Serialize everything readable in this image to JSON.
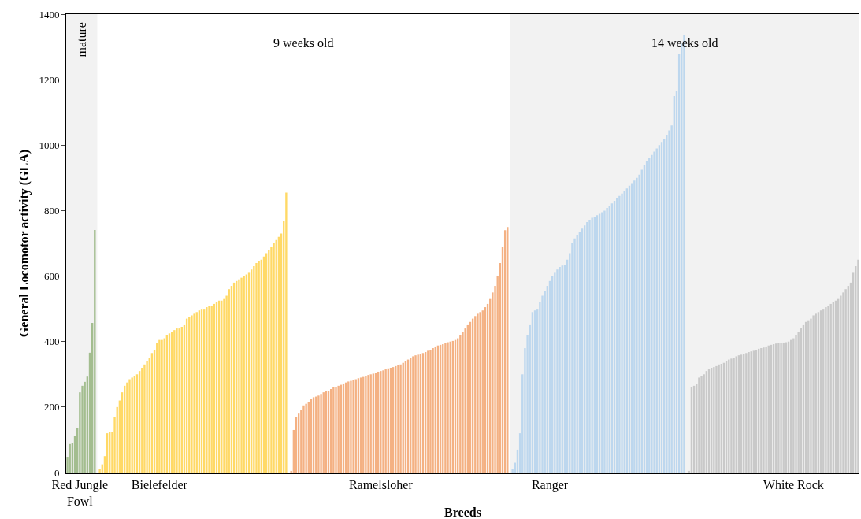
{
  "chart_data": {
    "type": "bar",
    "xlabel": "Breeds",
    "ylabel": "General Locomotor activity (GLA)",
    "categories": [
      null,
      null,
      null,
      null,
      null,
      "Red Jungle Fowl",
      null,
      null,
      null,
      null,
      null,
      null,
      null,
      null,
      null,
      null,
      null,
      null,
      null,
      null,
      null,
      null,
      null,
      null,
      null,
      null,
      null,
      null,
      null,
      null,
      null,
      null,
      null,
      null,
      null,
      null,
      null,
      "Bielefelder",
      null,
      null,
      null,
      null,
      null,
      null,
      null,
      null,
      null,
      null,
      null,
      null,
      null,
      null,
      null,
      null,
      null,
      null,
      null,
      null,
      null,
      null,
      null,
      null,
      null,
      null,
      null,
      null,
      null,
      null,
      null,
      null,
      null,
      null,
      null,
      null,
      null,
      null,
      null,
      null,
      null,
      null,
      null,
      null,
      null,
      null,
      null,
      null,
      null,
      null,
      null,
      null,
      null,
      null,
      null,
      null,
      null,
      null,
      null,
      null,
      null,
      null,
      null,
      null,
      null,
      null,
      null,
      null,
      null,
      null,
      null,
      null,
      null,
      null,
      null,
      null,
      null,
      null,
      null,
      null,
      null,
      null,
      null,
      null,
      null,
      null,
      null,
      null,
      "Ramelsloher",
      null,
      null,
      null,
      null,
      null,
      null,
      null,
      null,
      null,
      null,
      null,
      null,
      null,
      null,
      null,
      null,
      null,
      null,
      null,
      null,
      null,
      null,
      null,
      null,
      null,
      null,
      null,
      null,
      null,
      null,
      null,
      null,
      null,
      null,
      null,
      null,
      null,
      null,
      null,
      null,
      null,
      null,
      null,
      null,
      null,
      null,
      null,
      null,
      null,
      null,
      null,
      null,
      null,
      null,
      null,
      null,
      null,
      null,
      null,
      null,
      null,
      null,
      null,
      null,
      null,
      null,
      null,
      "Ranger",
      null,
      null,
      null,
      null,
      null,
      null,
      null,
      null,
      null,
      null,
      null,
      null,
      null,
      null,
      null,
      null,
      null,
      null,
      null,
      null,
      null,
      null,
      null,
      null,
      null,
      null,
      null,
      null,
      null,
      null,
      null,
      null,
      null,
      null,
      null,
      null,
      null,
      null,
      null,
      null,
      null,
      null,
      null,
      null,
      null,
      null,
      null,
      null,
      null,
      null,
      null,
      null,
      null,
      null,
      null,
      null,
      null,
      null,
      null,
      null,
      null,
      null,
      null,
      null,
      null,
      null,
      null,
      null,
      null,
      null,
      null,
      null,
      null,
      null,
      null,
      null,
      null,
      null,
      null,
      null,
      null,
      null,
      null,
      null,
      null,
      null,
      null,
      null,
      null,
      null,
      null,
      null,
      null,
      null,
      null,
      null,
      null,
      "White Rock",
      null,
      null,
      null,
      null,
      null,
      null,
      null,
      null,
      null,
      null,
      null,
      null,
      null,
      null,
      null,
      null,
      null,
      null,
      null,
      null,
      null,
      null,
      null,
      null,
      null,
      null
    ],
    "values": [
      48,
      87,
      91,
      113,
      137,
      245,
      265,
      277,
      293,
      366,
      457,
      741,
      null,
      10,
      25,
      50,
      120,
      125,
      125,
      170,
      200,
      220,
      245,
      265,
      275,
      285,
      290,
      295,
      300,
      310,
      320,
      330,
      340,
      350,
      365,
      375,
      395,
      405,
      405,
      410,
      420,
      425,
      430,
      435,
      440,
      440,
      445,
      450,
      470,
      475,
      480,
      485,
      490,
      495,
      500,
      500,
      505,
      510,
      510,
      515,
      520,
      525,
      525,
      530,
      540,
      560,
      570,
      580,
      585,
      590,
      595,
      600,
      605,
      610,
      620,
      630,
      640,
      645,
      650,
      660,
      670,
      680,
      690,
      700,
      710,
      720,
      730,
      770,
      855,
      null,
      5,
      130,
      170,
      180,
      190,
      205,
      210,
      215,
      225,
      230,
      232,
      235,
      240,
      245,
      248,
      250,
      255,
      260,
      262,
      265,
      268,
      272,
      275,
      278,
      280,
      282,
      285,
      288,
      290,
      292,
      295,
      298,
      300,
      302,
      305,
      308,
      310,
      312,
      315,
      318,
      320,
      322,
      325,
      328,
      330,
      335,
      340,
      345,
      350,
      355,
      358,
      360,
      362,
      365,
      368,
      372,
      375,
      380,
      385,
      388,
      390,
      392,
      395,
      398,
      400,
      402,
      405,
      410,
      420,
      430,
      440,
      450,
      460,
      470,
      478,
      485,
      490,
      495,
      505,
      515,
      530,
      550,
      570,
      600,
      640,
      690,
      740,
      750,
      null,
      10,
      30,
      70,
      120,
      300,
      380,
      420,
      450,
      490,
      495,
      500,
      520,
      540,
      555,
      570,
      585,
      600,
      610,
      620,
      628,
      632,
      635,
      650,
      670,
      700,
      715,
      725,
      735,
      745,
      755,
      765,
      772,
      778,
      782,
      786,
      790,
      795,
      800,
      808,
      815,
      822,
      830,
      838,
      845,
      852,
      860,
      868,
      876,
      884,
      892,
      900,
      910,
      925,
      940,
      950,
      960,
      970,
      980,
      990,
      1000,
      1010,
      1020,
      1030,
      1045,
      1060,
      1150,
      1165,
      1280,
      1310,
      1335,
      null,
      5,
      260,
      265,
      270,
      290,
      295,
      300,
      310,
      315,
      320,
      322,
      325,
      330,
      332,
      335,
      340,
      345,
      348,
      350,
      355,
      358,
      360,
      362,
      365,
      368,
      370,
      372,
      375,
      378,
      380,
      382,
      385,
      388,
      390,
      392,
      394,
      395,
      396,
      397,
      398,
      400,
      405,
      410,
      420,
      430,
      440,
      450,
      460,
      465,
      470,
      480,
      485,
      490,
      495,
      500,
      505,
      510,
      515,
      520,
      525,
      530,
      540,
      550,
      560,
      570,
      580,
      610,
      630,
      650
    ],
    "colors": [
      "#a3bd8f",
      "#a3bd8f",
      "#a3bd8f",
      "#a3bd8f",
      "#a3bd8f",
      "#a3bd8f",
      "#a3bd8f",
      "#a3bd8f",
      "#a3bd8f",
      "#a3bd8f",
      "#a3bd8f",
      "#a3bd8f",
      "#a3bd8f",
      "#ffd966",
      "#ffd966",
      "#ffd966",
      "#ffd966",
      "#ffd966",
      "#ffd966",
      "#ffd966",
      "#ffd966",
      "#ffd966",
      "#ffd966",
      "#ffd966",
      "#ffd966",
      "#ffd966",
      "#ffd966",
      "#ffd966",
      "#ffd966",
      "#ffd966",
      "#ffd966",
      "#ffd966",
      "#ffd966",
      "#ffd966",
      "#ffd966",
      "#ffd966",
      "#ffd966",
      "#ffd966",
      "#ffd966",
      "#ffd966",
      "#ffd966",
      "#ffd966",
      "#ffd966",
      "#ffd966",
      "#ffd966",
      "#ffd966",
      "#ffd966",
      "#ffd966",
      "#ffd966",
      "#ffd966",
      "#ffd966",
      "#ffd966",
      "#ffd966",
      "#ffd966",
      "#ffd966",
      "#ffd966",
      "#ffd966",
      "#ffd966",
      "#ffd966",
      "#ffd966",
      "#ffd966",
      "#ffd966",
      "#ffd966",
      "#ffd966",
      "#ffd966",
      "#ffd966",
      "#ffd966",
      "#ffd966",
      "#ffd966",
      "#ffd966",
      "#ffd966",
      "#ffd966",
      "#ffd966",
      "#ffd966",
      "#ffd966",
      "#ffd966",
      "#ffd966",
      "#ffd966",
      "#ffd966",
      "#ffd966",
      "#ffd966",
      "#ffd966",
      "#ffd966",
      "#ffd966",
      "#ffd966",
      "#ffd966",
      "#ffd966",
      "#ffd966",
      "#ffd966",
      "#ffd966",
      "#f4b183",
      "#f4b183",
      "#f4b183",
      "#f4b183",
      "#f4b183",
      "#f4b183",
      "#f4b183",
      "#f4b183",
      "#f4b183",
      "#f4b183",
      "#f4b183",
      "#f4b183",
      "#f4b183",
      "#f4b183",
      "#f4b183",
      "#f4b183",
      "#f4b183",
      "#f4b183",
      "#f4b183",
      "#f4b183",
      "#f4b183",
      "#f4b183",
      "#f4b183",
      "#f4b183",
      "#f4b183",
      "#f4b183",
      "#f4b183",
      "#f4b183",
      "#f4b183",
      "#f4b183",
      "#f4b183",
      "#f4b183",
      "#f4b183",
      "#f4b183",
      "#f4b183",
      "#f4b183",
      "#f4b183",
      "#f4b183",
      "#f4b183",
      "#f4b183",
      "#f4b183",
      "#f4b183",
      "#f4b183",
      "#f4b183",
      "#f4b183",
      "#f4b183",
      "#f4b183",
      "#f4b183",
      "#f4b183",
      "#f4b183",
      "#f4b183",
      "#f4b183",
      "#f4b183",
      "#f4b183",
      "#f4b183",
      "#f4b183",
      "#f4b183",
      "#f4b183",
      "#f4b183",
      "#f4b183",
      "#f4b183",
      "#f4b183",
      "#f4b183",
      "#f4b183",
      "#f4b183",
      "#f4b183",
      "#f4b183",
      "#f4b183",
      "#f4b183",
      "#f4b183",
      "#f4b183",
      "#f4b183",
      "#f4b183",
      "#f4b183",
      "#f4b183",
      "#f4b183",
      "#f4b183",
      "#f4b183",
      "#f4b183",
      "#f4b183",
      "#f4b183",
      "#f4b183",
      "#f4b183",
      "#f4b183",
      "#f4b183",
      "#f4b183",
      "#f4b183",
      "#f4b183",
      "#f4b183",
      "#bdd7ee",
      "#bdd7ee",
      "#bdd7ee",
      "#bdd7ee",
      "#bdd7ee",
      "#bdd7ee",
      "#bdd7ee",
      "#bdd7ee",
      "#bdd7ee",
      "#bdd7ee",
      "#bdd7ee",
      "#bdd7ee",
      "#bdd7ee",
      "#bdd7ee",
      "#bdd7ee",
      "#bdd7ee",
      "#bdd7ee",
      "#bdd7ee",
      "#bdd7ee",
      "#bdd7ee",
      "#bdd7ee",
      "#bdd7ee",
      "#bdd7ee",
      "#bdd7ee",
      "#bdd7ee",
      "#bdd7ee",
      "#bdd7ee",
      "#bdd7ee",
      "#bdd7ee",
      "#bdd7ee",
      "#bdd7ee",
      "#bdd7ee",
      "#bdd7ee",
      "#bdd7ee",
      "#bdd7ee",
      "#bdd7ee",
      "#bdd7ee",
      "#bdd7ee",
      "#bdd7ee",
      "#bdd7ee",
      "#bdd7ee",
      "#bdd7ee",
      "#bdd7ee",
      "#bdd7ee",
      "#bdd7ee",
      "#bdd7ee",
      "#bdd7ee",
      "#bdd7ee",
      "#bdd7ee",
      "#bdd7ee",
      "#bdd7ee",
      "#bdd7ee",
      "#bdd7ee",
      "#bdd7ee",
      "#bdd7ee",
      "#bdd7ee",
      "#bdd7ee",
      "#bdd7ee",
      "#bdd7ee",
      "#bdd7ee",
      "#bdd7ee",
      "#bdd7ee",
      "#bdd7ee",
      "#bdd7ee",
      "#bdd7ee",
      "#bdd7ee",
      "#bdd7ee",
      "#bdd7ee",
      "#bdd7ee",
      "#bdd7ee",
      "#bdd7ee",
      "#c9c9c9",
      "#c9c9c9",
      "#c9c9c9",
      "#c9c9c9",
      "#c9c9c9",
      "#c9c9c9",
      "#c9c9c9",
      "#c9c9c9",
      "#c9c9c9",
      "#c9c9c9",
      "#c9c9c9",
      "#c9c9c9",
      "#c9c9c9",
      "#c9c9c9",
      "#c9c9c9",
      "#c9c9c9",
      "#c9c9c9",
      "#c9c9c9",
      "#c9c9c9",
      "#c9c9c9",
      "#c9c9c9",
      "#c9c9c9",
      "#c9c9c9",
      "#c9c9c9",
      "#c9c9c9",
      "#c9c9c9",
      "#c9c9c9",
      "#c9c9c9",
      "#c9c9c9",
      "#c9c9c9",
      "#c9c9c9",
      "#c9c9c9",
      "#c9c9c9",
      "#c9c9c9",
      "#c9c9c9",
      "#c9c9c9",
      "#c9c9c9",
      "#c9c9c9",
      "#c9c9c9",
      "#c9c9c9",
      "#c9c9c9",
      "#c9c9c9",
      "#c9c9c9",
      "#c9c9c9",
      "#c9c9c9",
      "#c9c9c9",
      "#c9c9c9",
      "#c9c9c9",
      "#c9c9c9",
      "#c9c9c9",
      "#c9c9c9",
      "#c9c9c9",
      "#c9c9c9",
      "#c9c9c9",
      "#c9c9c9",
      "#c9c9c9",
      "#c9c9c9",
      "#c9c9c9",
      "#c9c9c9",
      "#c9c9c9",
      "#c9c9c9",
      "#c9c9c9",
      "#c9c9c9",
      "#c9c9c9",
      "#c9c9c9",
      "#c9c9c9",
      "#c9c9c9",
      "#c9c9c9",
      "#c9c9c9"
    ],
    "ylim": [
      0,
      1400
    ],
    "yticks": [
      0,
      200,
      400,
      600,
      800,
      1000,
      1200,
      1400
    ],
    "grid": false,
    "annotations": [
      "mature",
      "9 weeks old",
      "14 weeks old"
    ]
  }
}
